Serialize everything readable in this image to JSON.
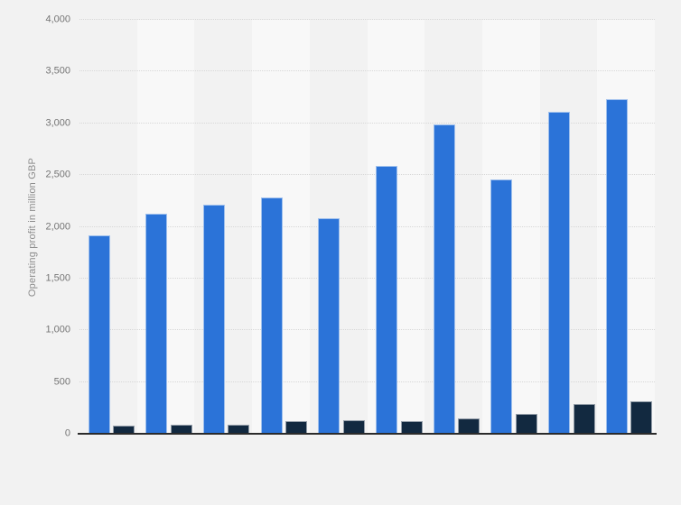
{
  "page": {
    "background_color": "#f2f2f2"
  },
  "chart_data": {
    "type": "bar",
    "title": "",
    "xlabel": "",
    "ylabel": "Operating profit in million GBP",
    "ylim": [
      0,
      4000
    ],
    "ytick_interval": 500,
    "yticks": [
      0,
      500,
      1000,
      1500,
      2000,
      2500,
      3000,
      3500,
      4000
    ],
    "ytick_labels": [
      "0",
      "500",
      "1,000",
      "1,500",
      "2,000",
      "2,500",
      "3,000",
      "3,500",
      "4,000"
    ],
    "categories": [
      "",
      "",
      "",
      "",
      "",
      "",
      "",
      "",
      "",
      ""
    ],
    "series": [
      {
        "name": "primary-series-blue",
        "color": "#2b73d8",
        "values": [
          1920,
          2130,
          2210,
          2280,
          2080,
          2590,
          2990,
          2460,
          3110,
          3230
        ]
      },
      {
        "name": "secondary-series-dark",
        "color": "#122940",
        "values": [
          75,
          90,
          90,
          125,
          135,
          120,
          145,
          195,
          290,
          310
        ]
      }
    ],
    "legend": "none",
    "grid": "horizontal-dotted",
    "gridline_color": "#d7d7d7",
    "axis_line_color": "#2b2b2b",
    "tick_label_color": "#757575",
    "ylabel_color": "#8c8c8c",
    "plot_band_colors": [
      "#f2f2f2",
      "#f8f8f8"
    ]
  }
}
